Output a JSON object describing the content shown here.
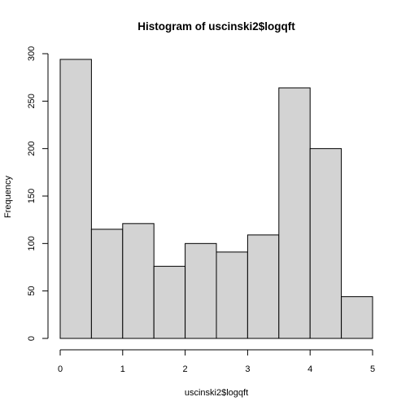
{
  "chart_data": {
    "type": "bar",
    "title": "Histogram of uscinski2$logqft",
    "xlabel": "uscinski2$logqft",
    "ylabel": "Frequency",
    "bins": [
      {
        "start": 0.0,
        "end": 0.5,
        "count": 294
      },
      {
        "start": 0.5,
        "end": 1.0,
        "count": 115
      },
      {
        "start": 1.0,
        "end": 1.5,
        "count": 121
      },
      {
        "start": 1.5,
        "end": 2.0,
        "count": 76
      },
      {
        "start": 2.0,
        "end": 2.5,
        "count": 100
      },
      {
        "start": 2.5,
        "end": 3.0,
        "count": 91
      },
      {
        "start": 3.0,
        "end": 3.5,
        "count": 109
      },
      {
        "start": 3.5,
        "end": 4.0,
        "count": 264
      },
      {
        "start": 4.0,
        "end": 4.5,
        "count": 200
      },
      {
        "start": 4.5,
        "end": 5.0,
        "count": 44
      }
    ],
    "xlim": [
      0,
      5
    ],
    "ylim": [
      0,
      300
    ],
    "x_ticks": [
      "0",
      "1",
      "2",
      "3",
      "4",
      "5"
    ],
    "y_ticks": [
      "0",
      "50",
      "100",
      "150",
      "200",
      "250",
      "300"
    ],
    "grid": false,
    "bar_color": "#d3d3d3",
    "border_color": "#000000"
  }
}
